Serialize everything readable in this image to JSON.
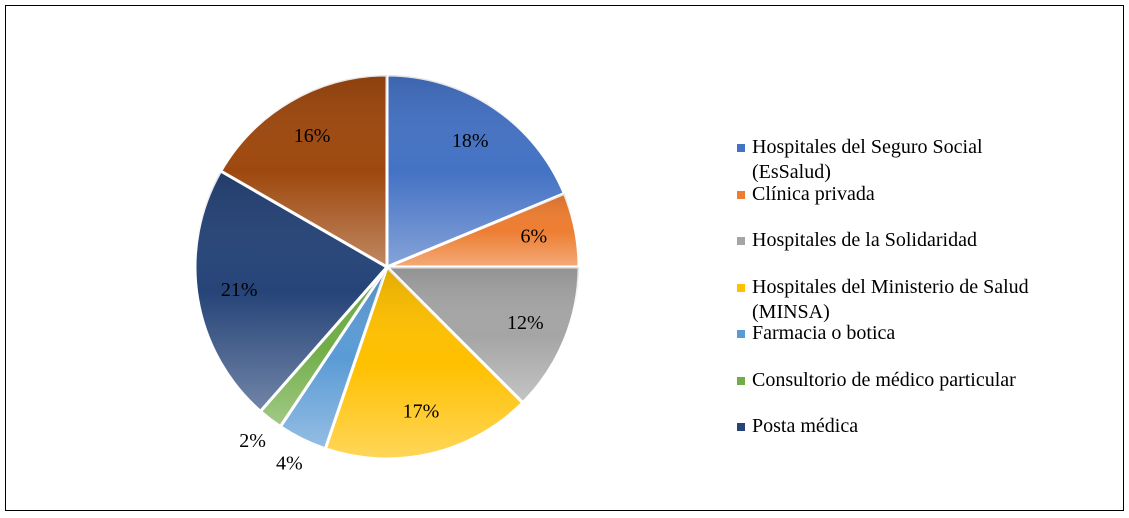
{
  "chart_data": {
    "type": "pie",
    "categories": [
      "Hospitales del Seguro Social (EsSalud)",
      "Clínica privada",
      "Hospitales de la Solidaridad",
      "Hospitales del Ministerio de Salud (MINSA)",
      "Farmacia o botica",
      "Consultorio de médico particular",
      "Posta médica",
      null
    ],
    "values": [
      18,
      6,
      12,
      17,
      4,
      2,
      21,
      16
    ],
    "value_labels": [
      "18%",
      "6%",
      "12%",
      "17%",
      "4%",
      "2%",
      "21%",
      "16%"
    ],
    "colors": [
      "#4472c4",
      "#ed7d31",
      "#a5a5a5",
      "#ffc000",
      "#5b9bd5",
      "#70ad47",
      "#264478",
      "#9e480e"
    ],
    "legend": "right"
  }
}
